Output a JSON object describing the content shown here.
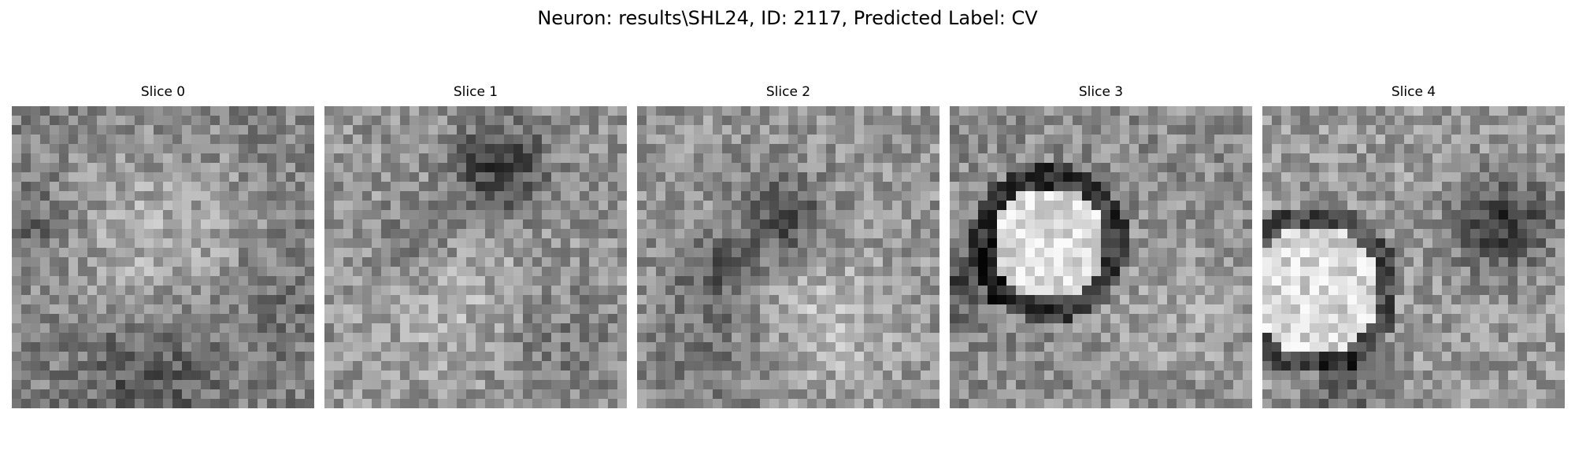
{
  "figure": {
    "title": "Neuron: results\\SHL24, ID: 2117, Predicted Label: CV"
  },
  "panels": [
    {
      "title": "Slice 0",
      "pattern": "diffuse-gray",
      "seed": 11
    },
    {
      "title": "Slice 1",
      "pattern": "dark-top-center",
      "seed": 23
    },
    {
      "title": "Slice 2",
      "pattern": "dark-upper-center",
      "seed": 37
    },
    {
      "title": "Slice 3",
      "pattern": "bright-cell-with-dark-ring",
      "seed": 51
    },
    {
      "title": "Slice 4",
      "pattern": "bright-cell-left-dark-upper-right",
      "seed": 67
    }
  ],
  "colormap": "gray"
}
